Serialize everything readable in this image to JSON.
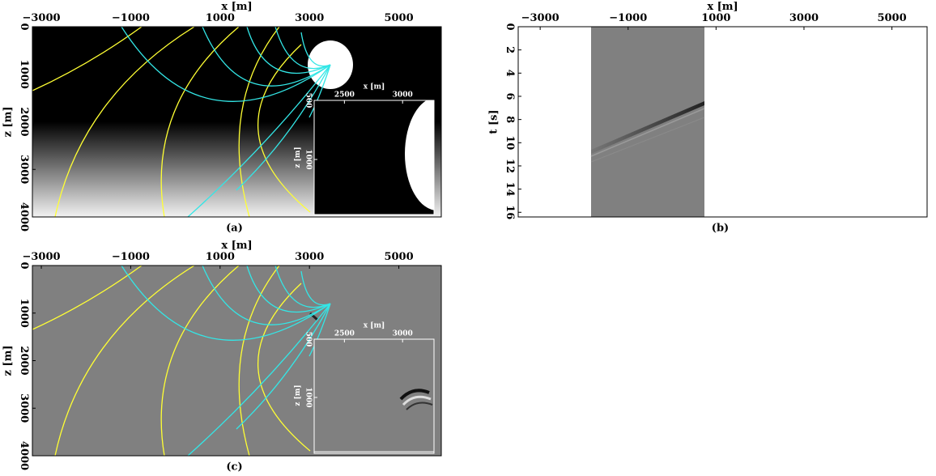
{
  "panels": [
    {
      "caption": "(a)",
      "x_label": "x [m]",
      "y_label": "z [m]",
      "xlim": [
        -3200,
        5950
      ],
      "xticks": [
        {
          "value": -3000,
          "label": "−3000"
        },
        {
          "value": -1000,
          "label": "−1000"
        },
        1000,
        3000,
        5000
      ],
      "ylim": [
        0,
        4000
      ],
      "yticks": [
        0,
        1000,
        2000,
        3000,
        4000
      ],
      "inset": {
        "x_label": "x [m]",
        "y_label": "z [m]",
        "xlim": [
          2240,
          3270
        ],
        "xticks": [
          2500,
          3000
        ],
        "ylim": [
          500,
          1466
        ],
        "yticks": [
          500,
          1000
        ]
      }
    },
    {
      "caption": "(b)",
      "x_label": "x [m]",
      "y_label": "t [s]",
      "xlim": [
        -3500,
        5800
      ],
      "xticks": [
        {
          "value": -3000,
          "label": "−3000"
        },
        {
          "value": -1000,
          "label": "−1000"
        },
        1000,
        3000,
        5000
      ],
      "ylim": [
        0,
        16.4
      ],
      "yticks": [
        0,
        2,
        4,
        6,
        8,
        10,
        12,
        14,
        16
      ]
    },
    {
      "caption": "(c)",
      "x_label": "x [m]",
      "y_label": "z [m]",
      "xlim": [
        -3200,
        5950
      ],
      "xticks": [
        {
          "value": -3000,
          "label": "−3000"
        },
        {
          "value": -1000,
          "label": "−1000"
        },
        1000,
        3000,
        5000
      ],
      "ylim": [
        0,
        4000
      ],
      "yticks": [
        0,
        1000,
        2000,
        3000,
        4000
      ],
      "inset": {
        "x_label": "x [m]",
        "y_label": "z [m]",
        "xlim": [
          2240,
          3270
        ],
        "xticks": [
          2500,
          3000
        ],
        "ylim": [
          500,
          1466
        ],
        "yticks": [
          500,
          1000
        ]
      }
    }
  ]
}
